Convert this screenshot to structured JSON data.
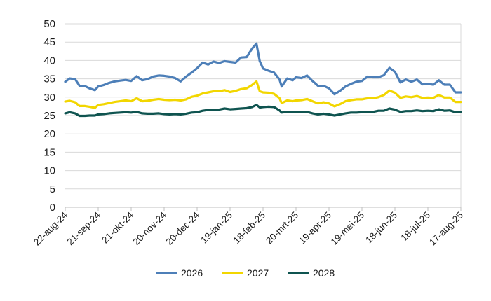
{
  "chart_data": {
    "type": "line",
    "title": "",
    "xlabel": "",
    "ylabel": "",
    "ylim": [
      0,
      50
    ],
    "yticks": [
      0,
      5,
      10,
      15,
      20,
      25,
      30,
      35,
      40,
      45,
      50
    ],
    "x_dates": [
      "2024-08-22",
      "2024-09-21",
      "2024-10-21",
      "2024-11-20",
      "2024-12-20",
      "2025-01-19",
      "2025-02-18",
      "2025-03-20",
      "2025-04-19",
      "2025-05-19",
      "2025-06-18",
      "2025-07-18",
      "2025-08-17"
    ],
    "x_tick_labels": [
      "22-aug-24",
      "21-sep-24",
      "21-okt-24",
      "20-nov-24",
      "20-dec-24",
      "19-jan-25",
      "18-feb-25",
      "20-mrt-25",
      "19-apr-25",
      "19-mei-25",
      "18-jun-25",
      "18-jul-25",
      "17-aug-25"
    ],
    "grid": "horizontal",
    "legend_position": "bottom",
    "series": [
      {
        "name": "2026",
        "color": "#4d7fb8",
        "points": [
          [
            "2024-08-22",
            34.2
          ],
          [
            "2024-08-26",
            35.1
          ],
          [
            "2024-08-31",
            34.9
          ],
          [
            "2024-09-04",
            33.1
          ],
          [
            "2024-09-09",
            33.0
          ],
          [
            "2024-09-13",
            32.4
          ],
          [
            "2024-09-18",
            31.9
          ],
          [
            "2024-09-21",
            32.9
          ],
          [
            "2024-09-26",
            33.3
          ],
          [
            "2024-10-01",
            33.9
          ],
          [
            "2024-10-06",
            34.3
          ],
          [
            "2024-10-11",
            34.5
          ],
          [
            "2024-10-16",
            34.7
          ],
          [
            "2024-10-21",
            34.4
          ],
          [
            "2024-10-26",
            35.7
          ],
          [
            "2024-10-31",
            34.6
          ],
          [
            "2024-11-05",
            34.9
          ],
          [
            "2024-11-10",
            35.6
          ],
          [
            "2024-11-15",
            35.9
          ],
          [
            "2024-11-20",
            35.8
          ],
          [
            "2024-11-25",
            35.6
          ],
          [
            "2024-11-30",
            35.2
          ],
          [
            "2024-12-05",
            34.3
          ],
          [
            "2024-12-10",
            35.6
          ],
          [
            "2024-12-15",
            36.7
          ],
          [
            "2024-12-20",
            37.9
          ],
          [
            "2024-12-25",
            39.4
          ],
          [
            "2024-12-30",
            38.9
          ],
          [
            "2025-01-04",
            39.7
          ],
          [
            "2025-01-09",
            39.3
          ],
          [
            "2025-01-14",
            39.8
          ],
          [
            "2025-01-19",
            39.6
          ],
          [
            "2025-01-24",
            39.4
          ],
          [
            "2025-01-29",
            40.8
          ],
          [
            "2025-02-03",
            40.9
          ],
          [
            "2025-02-08",
            43.2
          ],
          [
            "2025-02-12",
            44.6
          ],
          [
            "2025-02-15",
            39.8
          ],
          [
            "2025-02-18",
            37.8
          ],
          [
            "2025-02-23",
            37.2
          ],
          [
            "2025-02-28",
            36.7
          ],
          [
            "2025-03-05",
            34.8
          ],
          [
            "2025-03-07",
            32.9
          ],
          [
            "2025-03-12",
            35.1
          ],
          [
            "2025-03-17",
            34.6
          ],
          [
            "2025-03-20",
            35.4
          ],
          [
            "2025-03-25",
            35.2
          ],
          [
            "2025-03-30",
            35.9
          ],
          [
            "2025-04-04",
            34.4
          ],
          [
            "2025-04-09",
            33.1
          ],
          [
            "2025-04-14",
            33.1
          ],
          [
            "2025-04-19",
            32.4
          ],
          [
            "2025-04-24",
            30.8
          ],
          [
            "2025-04-29",
            31.7
          ],
          [
            "2025-05-04",
            32.9
          ],
          [
            "2025-05-09",
            33.6
          ],
          [
            "2025-05-14",
            34.2
          ],
          [
            "2025-05-19",
            34.4
          ],
          [
            "2025-05-24",
            35.6
          ],
          [
            "2025-05-29",
            35.4
          ],
          [
            "2025-06-03",
            35.4
          ],
          [
            "2025-06-08",
            36.0
          ],
          [
            "2025-06-13",
            38.0
          ],
          [
            "2025-06-18",
            36.9
          ],
          [
            "2025-06-23",
            34.0
          ],
          [
            "2025-06-28",
            34.8
          ],
          [
            "2025-07-03",
            34.2
          ],
          [
            "2025-07-08",
            34.8
          ],
          [
            "2025-07-13",
            33.5
          ],
          [
            "2025-07-18",
            33.6
          ],
          [
            "2025-07-23",
            33.4
          ],
          [
            "2025-07-28",
            34.6
          ],
          [
            "2025-08-02",
            33.4
          ],
          [
            "2025-08-07",
            33.4
          ],
          [
            "2025-08-12",
            31.3
          ],
          [
            "2025-08-17",
            31.3
          ]
        ]
      },
      {
        "name": "2027",
        "color": "#f2d600",
        "points": [
          [
            "2024-08-22",
            28.8
          ],
          [
            "2024-08-26",
            29.0
          ],
          [
            "2024-08-31",
            28.6
          ],
          [
            "2024-09-04",
            27.6
          ],
          [
            "2024-09-09",
            27.6
          ],
          [
            "2024-09-13",
            27.4
          ],
          [
            "2024-09-18",
            27.1
          ],
          [
            "2024-09-21",
            27.9
          ],
          [
            "2024-09-26",
            28.1
          ],
          [
            "2024-10-01",
            28.4
          ],
          [
            "2024-10-06",
            28.7
          ],
          [
            "2024-10-11",
            28.9
          ],
          [
            "2024-10-16",
            29.1
          ],
          [
            "2024-10-21",
            28.9
          ],
          [
            "2024-10-26",
            29.7
          ],
          [
            "2024-10-31",
            28.9
          ],
          [
            "2024-11-05",
            29.0
          ],
          [
            "2024-11-10",
            29.3
          ],
          [
            "2024-11-15",
            29.5
          ],
          [
            "2024-11-20",
            29.3
          ],
          [
            "2024-11-25",
            29.2
          ],
          [
            "2024-11-30",
            29.3
          ],
          [
            "2024-12-05",
            29.1
          ],
          [
            "2024-12-10",
            29.4
          ],
          [
            "2024-12-15",
            30.1
          ],
          [
            "2024-12-20",
            30.4
          ],
          [
            "2024-12-25",
            31.0
          ],
          [
            "2024-12-30",
            31.3
          ],
          [
            "2025-01-04",
            31.6
          ],
          [
            "2025-01-09",
            31.6
          ],
          [
            "2025-01-14",
            31.9
          ],
          [
            "2025-01-19",
            31.4
          ],
          [
            "2025-01-24",
            31.7
          ],
          [
            "2025-01-29",
            32.2
          ],
          [
            "2025-02-03",
            32.4
          ],
          [
            "2025-02-08",
            33.3
          ],
          [
            "2025-02-12",
            34.3
          ],
          [
            "2025-02-15",
            31.6
          ],
          [
            "2025-02-18",
            31.3
          ],
          [
            "2025-02-23",
            31.2
          ],
          [
            "2025-02-28",
            30.9
          ],
          [
            "2025-03-05",
            29.7
          ],
          [
            "2025-03-07",
            28.4
          ],
          [
            "2025-03-12",
            29.1
          ],
          [
            "2025-03-17",
            28.9
          ],
          [
            "2025-03-20",
            29.1
          ],
          [
            "2025-03-25",
            29.2
          ],
          [
            "2025-03-30",
            29.5
          ],
          [
            "2025-04-04",
            28.9
          ],
          [
            "2025-04-09",
            28.3
          ],
          [
            "2025-04-14",
            28.6
          ],
          [
            "2025-04-19",
            28.3
          ],
          [
            "2025-04-24",
            27.5
          ],
          [
            "2025-04-29",
            28.1
          ],
          [
            "2025-05-04",
            28.9
          ],
          [
            "2025-05-09",
            29.2
          ],
          [
            "2025-05-14",
            29.4
          ],
          [
            "2025-05-19",
            29.4
          ],
          [
            "2025-05-24",
            29.7
          ],
          [
            "2025-05-29",
            29.7
          ],
          [
            "2025-06-03",
            30.0
          ],
          [
            "2025-06-08",
            30.6
          ],
          [
            "2025-06-13",
            31.8
          ],
          [
            "2025-06-18",
            31.2
          ],
          [
            "2025-06-23",
            29.8
          ],
          [
            "2025-06-28",
            30.2
          ],
          [
            "2025-07-03",
            30.0
          ],
          [
            "2025-07-08",
            30.3
          ],
          [
            "2025-07-13",
            29.8
          ],
          [
            "2025-07-18",
            29.9
          ],
          [
            "2025-07-23",
            29.8
          ],
          [
            "2025-07-28",
            30.6
          ],
          [
            "2025-08-02",
            29.9
          ],
          [
            "2025-08-07",
            29.9
          ],
          [
            "2025-08-12",
            28.7
          ],
          [
            "2025-08-17",
            28.7
          ]
        ]
      },
      {
        "name": "2028",
        "color": "#0f5450",
        "points": [
          [
            "2024-08-22",
            25.6
          ],
          [
            "2024-08-26",
            25.9
          ],
          [
            "2024-08-31",
            25.6
          ],
          [
            "2024-09-04",
            24.9
          ],
          [
            "2024-09-09",
            24.9
          ],
          [
            "2024-09-13",
            25.0
          ],
          [
            "2024-09-18",
            25.0
          ],
          [
            "2024-09-21",
            25.3
          ],
          [
            "2024-09-26",
            25.4
          ],
          [
            "2024-10-01",
            25.6
          ],
          [
            "2024-10-06",
            25.7
          ],
          [
            "2024-10-11",
            25.8
          ],
          [
            "2024-10-16",
            25.9
          ],
          [
            "2024-10-21",
            25.8
          ],
          [
            "2024-10-26",
            26.0
          ],
          [
            "2024-10-31",
            25.6
          ],
          [
            "2024-11-05",
            25.5
          ],
          [
            "2024-11-10",
            25.5
          ],
          [
            "2024-11-15",
            25.6
          ],
          [
            "2024-11-20",
            25.4
          ],
          [
            "2024-11-25",
            25.3
          ],
          [
            "2024-11-30",
            25.4
          ],
          [
            "2024-12-05",
            25.3
          ],
          [
            "2024-12-10",
            25.5
          ],
          [
            "2024-12-15",
            25.8
          ],
          [
            "2024-12-20",
            25.9
          ],
          [
            "2024-12-25",
            26.3
          ],
          [
            "2024-12-30",
            26.5
          ],
          [
            "2025-01-04",
            26.6
          ],
          [
            "2025-01-09",
            26.6
          ],
          [
            "2025-01-14",
            26.9
          ],
          [
            "2025-01-19",
            26.7
          ],
          [
            "2025-01-24",
            26.8
          ],
          [
            "2025-01-29",
            26.9
          ],
          [
            "2025-02-03",
            27.0
          ],
          [
            "2025-02-08",
            27.3
          ],
          [
            "2025-02-12",
            27.9
          ],
          [
            "2025-02-15",
            27.2
          ],
          [
            "2025-02-18",
            27.3
          ],
          [
            "2025-02-23",
            27.4
          ],
          [
            "2025-02-28",
            27.3
          ],
          [
            "2025-03-05",
            26.4
          ],
          [
            "2025-03-07",
            25.8
          ],
          [
            "2025-03-12",
            26.0
          ],
          [
            "2025-03-17",
            25.9
          ],
          [
            "2025-03-20",
            25.9
          ],
          [
            "2025-03-25",
            25.9
          ],
          [
            "2025-03-30",
            26.0
          ],
          [
            "2025-04-04",
            25.6
          ],
          [
            "2025-04-09",
            25.3
          ],
          [
            "2025-04-14",
            25.5
          ],
          [
            "2025-04-19",
            25.3
          ],
          [
            "2025-04-24",
            25.0
          ],
          [
            "2025-04-29",
            25.3
          ],
          [
            "2025-05-04",
            25.6
          ],
          [
            "2025-05-09",
            25.8
          ],
          [
            "2025-05-14",
            25.8
          ],
          [
            "2025-05-19",
            25.9
          ],
          [
            "2025-05-24",
            25.9
          ],
          [
            "2025-05-29",
            26.0
          ],
          [
            "2025-06-03",
            26.3
          ],
          [
            "2025-06-08",
            26.3
          ],
          [
            "2025-06-13",
            26.9
          ],
          [
            "2025-06-18",
            26.6
          ],
          [
            "2025-06-23",
            26.0
          ],
          [
            "2025-06-28",
            26.2
          ],
          [
            "2025-07-03",
            26.2
          ],
          [
            "2025-07-08",
            26.4
          ],
          [
            "2025-07-13",
            26.2
          ],
          [
            "2025-07-18",
            26.3
          ],
          [
            "2025-07-23",
            26.2
          ],
          [
            "2025-07-28",
            26.7
          ],
          [
            "2025-08-02",
            26.3
          ],
          [
            "2025-08-07",
            26.4
          ],
          [
            "2025-08-12",
            25.9
          ],
          [
            "2025-08-17",
            25.9
          ]
        ]
      }
    ]
  }
}
